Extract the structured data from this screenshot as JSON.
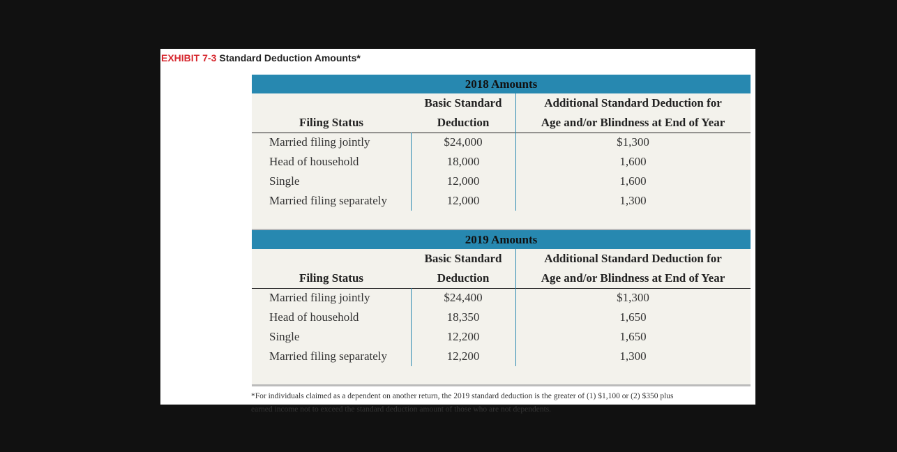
{
  "header": {
    "label": "EXHIBIT 7-3",
    "title": "Standard Deduction Amounts*"
  },
  "tables": [
    {
      "title": "2018 Amounts",
      "columns": [
        [
          "Filing Status"
        ],
        [
          "Basic Standard",
          "Deduction"
        ],
        [
          "Additional Standard Deduction for",
          "Age and/or Blindness at End of Year"
        ]
      ],
      "rows": [
        [
          "Married filing jointly",
          "$24,000",
          "$1,300"
        ],
        [
          "Head of household",
          "18,000",
          "1,600"
        ],
        [
          "Single",
          "12,000",
          "1,600"
        ],
        [
          "Married filing separately",
          "12,000",
          "1,300"
        ]
      ]
    },
    {
      "title": "2019 Amounts",
      "columns": [
        [
          "Filing Status"
        ],
        [
          "Basic Standard",
          "Deduction"
        ],
        [
          "Additional Standard Deduction for",
          "Age and/or Blindness at End of Year"
        ]
      ],
      "rows": [
        [
          "Married filing jointly",
          "$24,400",
          "$1,300"
        ],
        [
          "Head of household",
          "18,350",
          "1,650"
        ],
        [
          "Single",
          "12,200",
          "1,650"
        ],
        [
          "Married filing separately",
          "12,200",
          "1,300"
        ]
      ]
    }
  ],
  "footnote": [
    "*For individuals claimed as a dependent on another return, the 2019 standard deduction is the greater of (1) $1,100 or (2) $350 plus",
    "earned income not to exceed the standard deduction amount of those who are not dependents."
  ]
}
